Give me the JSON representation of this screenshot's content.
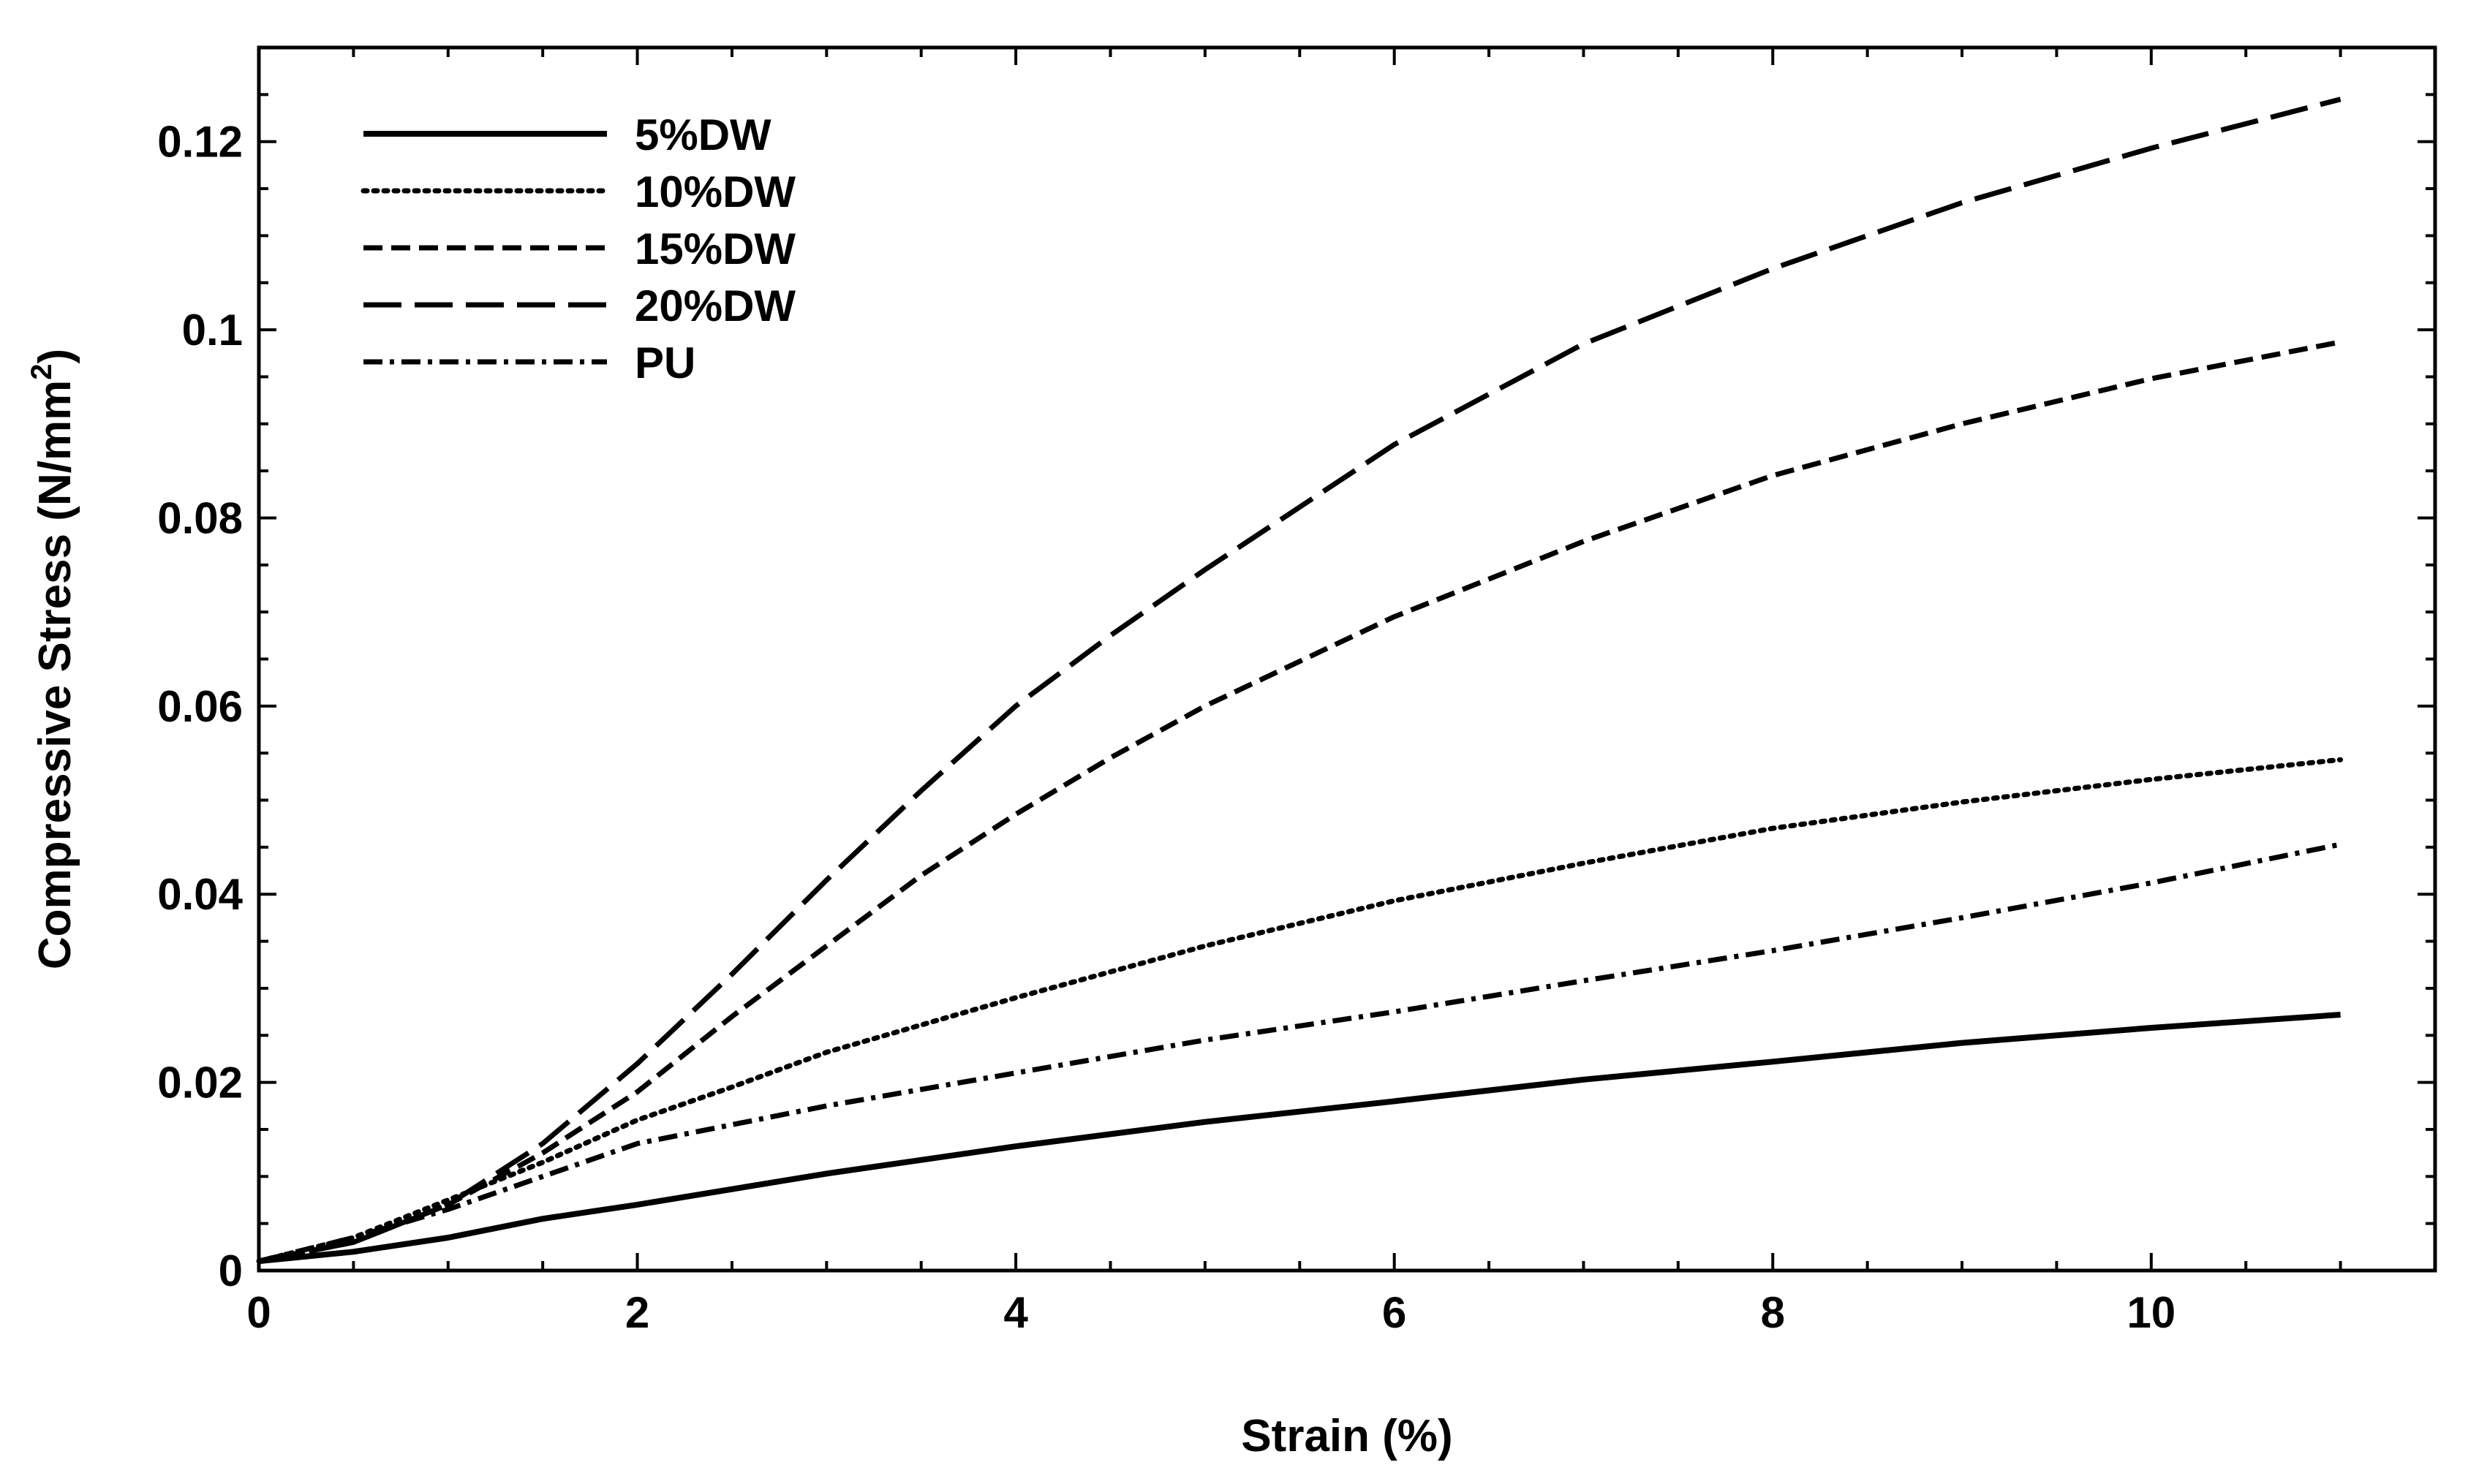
{
  "chart_data": {
    "type": "line",
    "title": "",
    "xlabel": "Strain (%)",
    "ylabel": {
      "main": "Compressive Stress (N/mm",
      "superscript": "2",
      "close": ")"
    },
    "xlim": [
      0,
      11.5
    ],
    "ylim": [
      0,
      0.13
    ],
    "xticks": [
      0,
      2,
      4,
      6,
      8,
      10
    ],
    "xtick_labels": [
      "0",
      "2",
      "4",
      "6",
      "8",
      "10"
    ],
    "yticks": [
      0,
      0.02,
      0.04,
      0.06,
      0.08,
      0.1,
      0.12
    ],
    "ytick_labels": [
      "0",
      "0.02",
      "0.04",
      "0.06",
      "0.08",
      "0.1",
      "0.12"
    ],
    "grid": false,
    "legend_position": "top-left",
    "series": [
      {
        "name": "5%DW",
        "dash": "solid",
        "x": [
          0,
          0.5,
          1,
          1.5,
          2,
          3,
          4,
          5,
          6,
          7,
          8,
          9,
          10,
          11
        ],
        "y": [
          0.001,
          0.002,
          0.0035,
          0.0055,
          0.007,
          0.0103,
          0.0132,
          0.0158,
          0.018,
          0.0203,
          0.0222,
          0.0242,
          0.0258,
          0.0272
        ]
      },
      {
        "name": "10%DW",
        "dash": "dotted",
        "x": [
          0,
          0.5,
          1,
          1.5,
          2,
          2.5,
          3,
          4,
          5,
          6,
          7,
          8,
          9,
          10,
          11
        ],
        "y": [
          0.001,
          0.0035,
          0.0075,
          0.0115,
          0.016,
          0.0195,
          0.0232,
          0.029,
          0.0345,
          0.0393,
          0.0433,
          0.047,
          0.0498,
          0.0522,
          0.0543
        ]
      },
      {
        "name": "15%DW",
        "dash": "dashed",
        "x": [
          0,
          0.5,
          1,
          1.5,
          2,
          2.5,
          3,
          3.5,
          4,
          4.5,
          5,
          6,
          7,
          8,
          9,
          10,
          11
        ],
        "y": [
          0.001,
          0.003,
          0.007,
          0.0125,
          0.019,
          0.027,
          0.0345,
          0.042,
          0.0485,
          0.0545,
          0.06,
          0.0695,
          0.0775,
          0.0845,
          0.09,
          0.0948,
          0.0987
        ]
      },
      {
        "name": "20%DW",
        "dash": "long-dashed",
        "x": [
          0,
          0.5,
          1,
          1.5,
          2,
          2.5,
          3,
          3.5,
          4,
          4.5,
          5,
          6,
          7,
          8,
          9,
          10,
          11
        ],
        "y": [
          0.001,
          0.003,
          0.007,
          0.0135,
          0.022,
          0.0315,
          0.0415,
          0.051,
          0.06,
          0.0675,
          0.0745,
          0.0878,
          0.0985,
          0.1065,
          0.1135,
          0.1193,
          0.1245
        ]
      },
      {
        "name": "PU",
        "dash": "dash-dot",
        "x": [
          0,
          0.5,
          1,
          1.5,
          2,
          3,
          4,
          5,
          6,
          7,
          8,
          9,
          10,
          11
        ],
        "y": [
          0.001,
          0.0035,
          0.0065,
          0.01,
          0.0135,
          0.0175,
          0.021,
          0.0245,
          0.0275,
          0.0308,
          0.034,
          0.0375,
          0.0412,
          0.0453
        ]
      }
    ]
  }
}
